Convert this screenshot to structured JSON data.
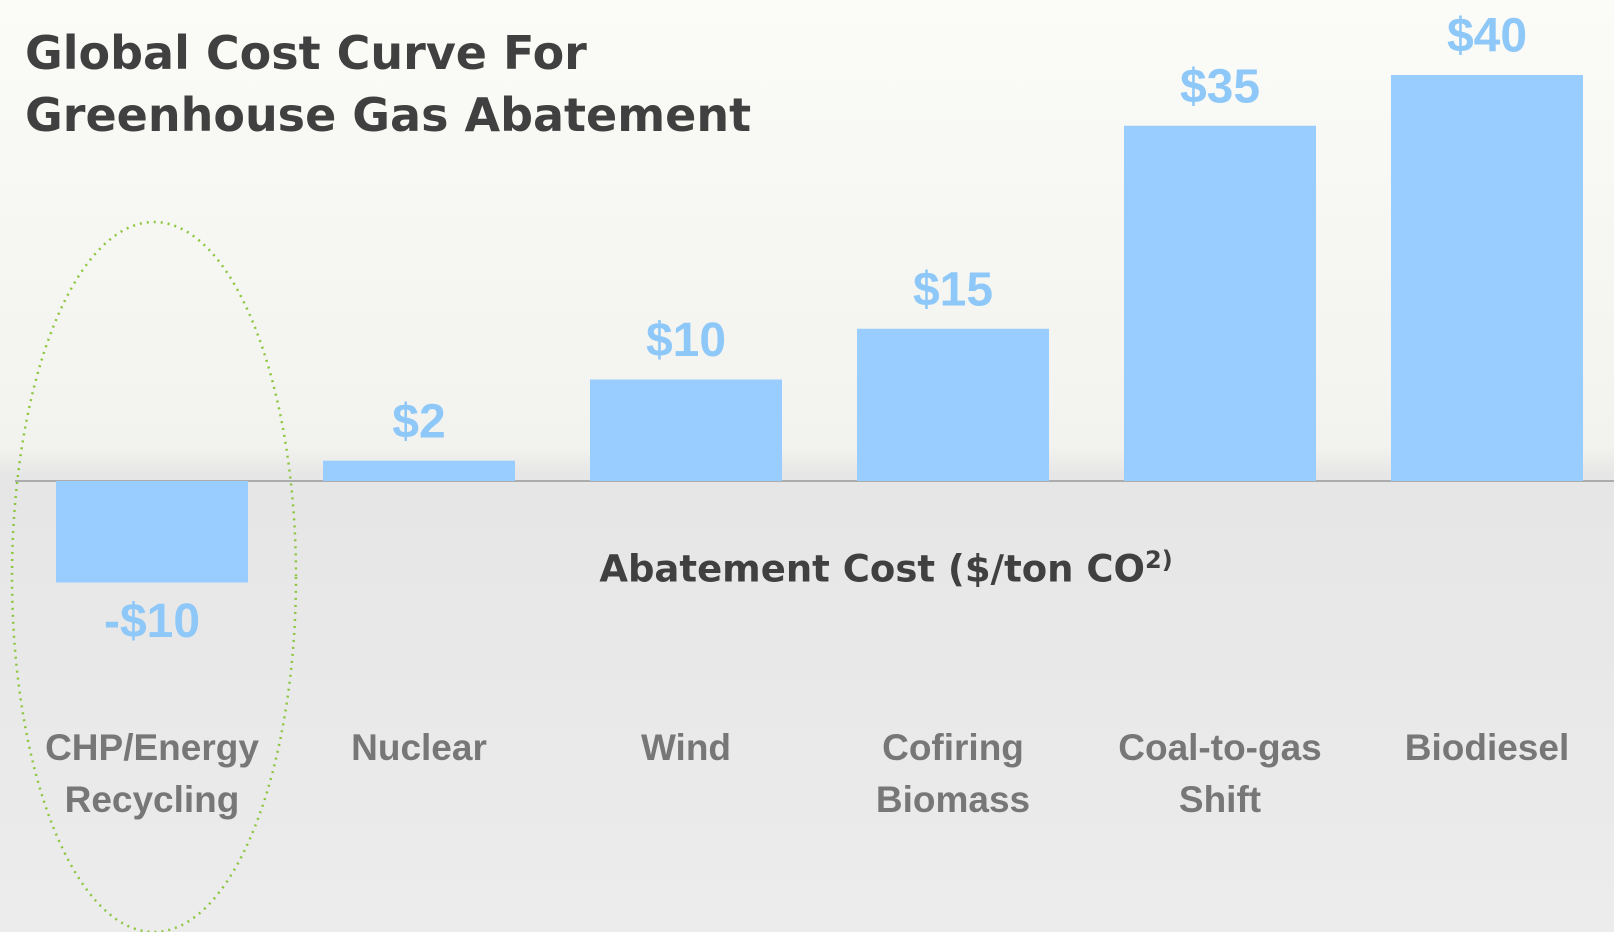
{
  "chart_data": {
    "type": "bar",
    "title": "Global Cost Curve For Greenhouse Gas Abatement",
    "x_label": "Abatement Cost ($/ton CO",
    "x_label_superscript": "2)",
    "categories": [
      "CHP/Energy Recycling",
      "Nuclear",
      "Wind",
      "Cofiring Biomass",
      "Coal-to-gas Shift",
      "Biodiesel"
    ],
    "values": [
      -10,
      2,
      10,
      15,
      35,
      40
    ],
    "value_labels": [
      "-$10",
      "$2",
      "$10",
      "$15",
      "$35",
      "$40"
    ],
    "color": "#99ccff"
  }
}
